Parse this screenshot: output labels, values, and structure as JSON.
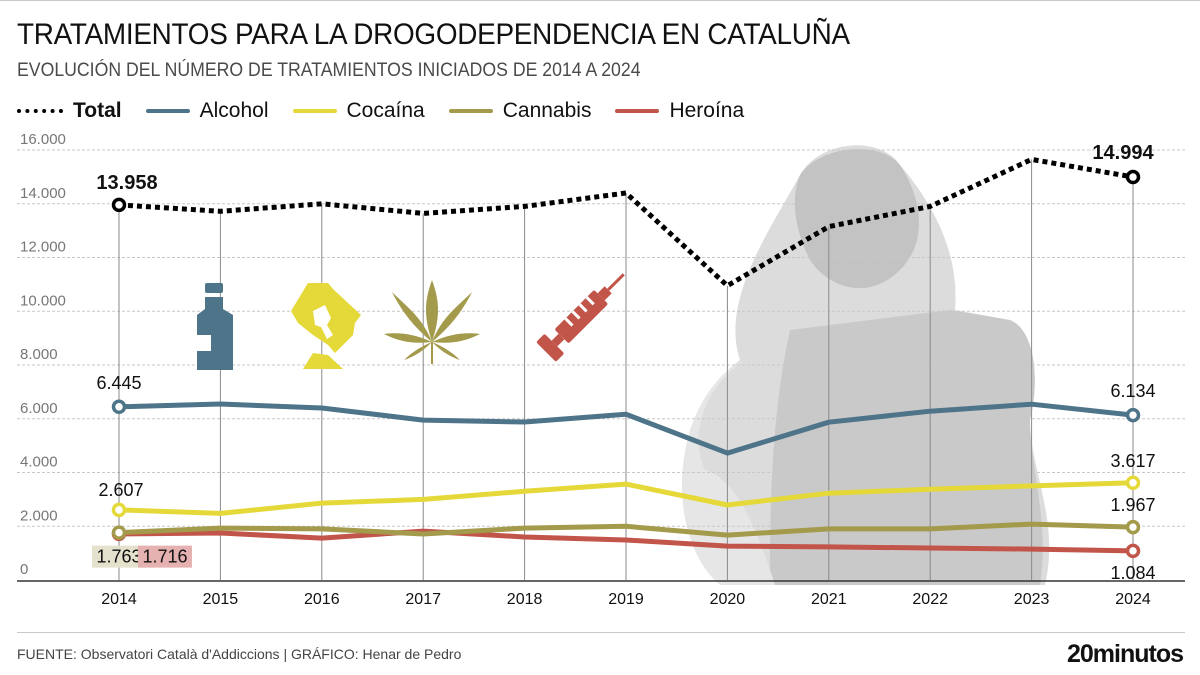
{
  "header": {
    "title": "TRATAMIENTOS PARA LA DROGODEPENDENCIA EN CATALUÑA",
    "subtitle": "EVOLUCIÓN DEL NÚMERO DE TRATAMIENTOS INICIADOS DE 2014 A 2024"
  },
  "legend": [
    {
      "label": "Total",
      "color": "#000000",
      "style": "dotted"
    },
    {
      "label": "Alcohol",
      "color": "#4e7489",
      "style": "solid"
    },
    {
      "label": "Cocaína",
      "color": "#e5d93a",
      "style": "solid"
    },
    {
      "label": "Cannabis",
      "color": "#a39a4b",
      "style": "solid"
    },
    {
      "label": "Heroína",
      "color": "#c2554a",
      "style": "solid"
    }
  ],
  "icons": [
    {
      "name": "bottle-icon",
      "series": "Alcohol"
    },
    {
      "name": "razor-powder-icon",
      "series": "Cocaína"
    },
    {
      "name": "cannabis-leaf-icon",
      "series": "Cannabis"
    },
    {
      "name": "syringe-icon",
      "series": "Heroína"
    }
  ],
  "chart_data": {
    "type": "line",
    "title": "TRATAMIENTOS PARA LA DROGODEPENDENCIA EN CATALUÑA",
    "subtitle": "EVOLUCIÓN DEL NÚMERO DE TRATAMIENTOS INICIADOS DE 2014 A 2024",
    "xlabel": "",
    "ylabel": "",
    "x": [
      "2014",
      "2015",
      "2016",
      "2017",
      "2018",
      "2019",
      "2020",
      "2021",
      "2022",
      "2023",
      "2024"
    ],
    "ylim": [
      0,
      16000
    ],
    "yticks": [
      0,
      2000,
      4000,
      6000,
      8000,
      10000,
      12000,
      14000,
      16000
    ],
    "ytick_labels": [
      "0",
      "2.000",
      "4.000",
      "6.000",
      "8.000",
      "10.000",
      "12.000",
      "14.000",
      "16.000"
    ],
    "grid": true,
    "legend_position": "top-left",
    "series": [
      {
        "name": "Total",
        "color": "#000000",
        "style": "dotted",
        "values": [
          13958,
          13720,
          14000,
          13640,
          13900,
          14400,
          10950,
          13150,
          13900,
          15650,
          14994
        ]
      },
      {
        "name": "Alcohol",
        "color": "#4e7489",
        "style": "solid",
        "values": [
          6445,
          6550,
          6400,
          5950,
          5880,
          6170,
          4720,
          5870,
          6280,
          6540,
          6134
        ]
      },
      {
        "name": "Cocaína",
        "color": "#e5d93a",
        "style": "solid",
        "values": [
          2607,
          2480,
          2860,
          3000,
          3300,
          3570,
          2790,
          3230,
          3380,
          3500,
          3617
        ]
      },
      {
        "name": "Cannabis",
        "color": "#a39a4b",
        "style": "solid",
        "values": [
          1763,
          1930,
          1900,
          1710,
          1930,
          2000,
          1670,
          1900,
          1900,
          2080,
          1967
        ]
      },
      {
        "name": "Heroína",
        "color": "#c2554a",
        "style": "solid",
        "values": [
          1716,
          1750,
          1560,
          1820,
          1600,
          1490,
          1260,
          1230,
          1190,
          1150,
          1084
        ]
      }
    ],
    "annotations": [
      {
        "series": "Total",
        "x": "2014",
        "text": "13.958",
        "bold": true
      },
      {
        "series": "Total",
        "x": "2024",
        "text": "14.994",
        "bold": true
      },
      {
        "series": "Alcohol",
        "x": "2014",
        "text": "6.445"
      },
      {
        "series": "Alcohol",
        "x": "2024",
        "text": "6.134"
      },
      {
        "series": "Cocaína",
        "x": "2014",
        "text": "2.607"
      },
      {
        "series": "Cocaína",
        "x": "2024",
        "text": "3.617"
      },
      {
        "series": "Cannabis",
        "x": "2014",
        "text": "1.763",
        "background": "#e4e2cc"
      },
      {
        "series": "Cannabis",
        "x": "2024",
        "text": "1.967"
      },
      {
        "series": "Heroína",
        "x": "2014",
        "text": "1.716",
        "background": "#e6b1b1"
      },
      {
        "series": "Heroína",
        "x": "2024",
        "text": "1.084"
      }
    ]
  },
  "footer": {
    "source": "FUENTE: Observatori Català d'Addiccions  |  GRÁFICO: Henar de Pedro",
    "brand": "20minutos"
  }
}
